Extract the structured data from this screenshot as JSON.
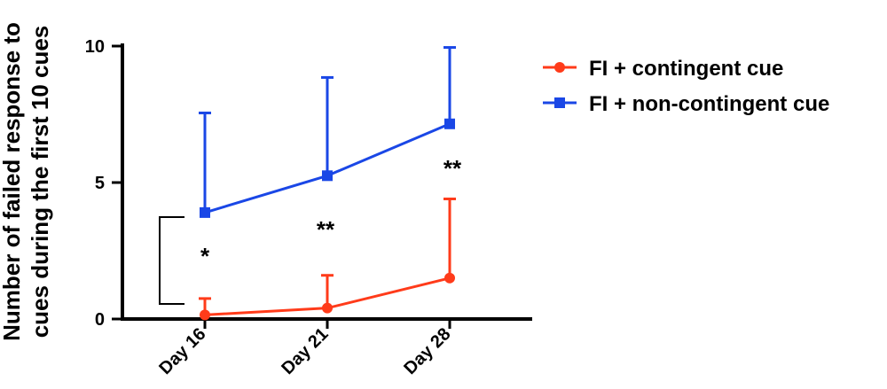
{
  "chart_data": {
    "type": "line",
    "xlabel": "",
    "ylabel_line1": "Number of failed response to",
    "ylabel_line2": "cues during the first 10 cues",
    "categories": [
      "Day 16",
      "Day 21",
      "Day 28"
    ],
    "ylim": [
      0,
      10
    ],
    "yticks": [
      0,
      5,
      10
    ],
    "grid": false,
    "legend_position": "top-right",
    "series": [
      {
        "name": "FI + contingent cue",
        "color": "#ff3b1a",
        "marker": "circle",
        "values": [
          0.15,
          0.4,
          1.5
        ],
        "error_upper": [
          0.6,
          1.2,
          2.9
        ]
      },
      {
        "name": "FI + non-contingent cue",
        "color": "#1a47e6",
        "marker": "square",
        "values": [
          3.9,
          5.25,
          7.15
        ],
        "error_upper": [
          3.65,
          3.6,
          2.8
        ]
      }
    ],
    "annotations": [
      {
        "category_index": 0,
        "text": "*",
        "bracket": true
      },
      {
        "category_index": 1,
        "text": "**"
      },
      {
        "category_index": 2,
        "text": "**"
      }
    ]
  }
}
